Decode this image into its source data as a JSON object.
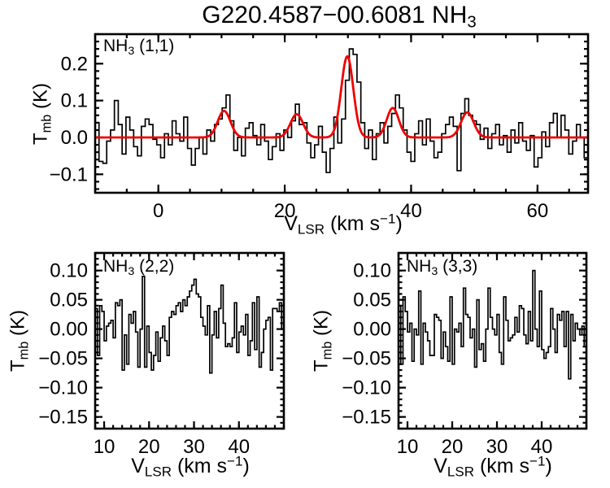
{
  "title": {
    "main": "G220.4587−00.6081 NH",
    "sub": "3"
  },
  "colors": {
    "spectrum": "#000000",
    "fit": "#ee0000",
    "background": "#ffffff"
  },
  "chart_data": [
    {
      "id": "nh3-11",
      "type": "line",
      "style": "histogram-step",
      "label": {
        "pre": "NH",
        "sub": "3",
        "post": " (1,1)"
      },
      "ylabel": {
        "pre": "T",
        "sub": "mb",
        "post": " (K)"
      },
      "xlabel": {
        "pre": "V",
        "sub": "LSR",
        "mid": " (km s",
        "sup": "−1",
        "end": ")"
      },
      "xlim": [
        -10,
        68
      ],
      "ylim": [
        -0.15,
        0.28
      ],
      "grid": false,
      "xticks": {
        "major": [
          0,
          20,
          40,
          60
        ],
        "labels": [
          "0",
          "20",
          "40",
          "60"
        ],
        "minor_step": 5
      },
      "yticks": {
        "major": [
          -0.1,
          0.0,
          0.1,
          0.2
        ],
        "labels": [
          "−0.1",
          "0.0",
          "0.1",
          "0.2"
        ],
        "minor_step": 0.02
      },
      "x0": -10,
      "dx": 0.609375,
      "values": [
        0.04,
        -0.065,
        -0.07,
        -0.01,
        0.02,
        0.1,
        0.035,
        -0.045,
        0.055,
        0.02,
        -0.025,
        -0.05,
        0.03,
        0.05,
        0.035,
        -0.005,
        -0.02,
        -0.055,
        0.01,
        -0.02,
        0.045,
        0.01,
        -0.01,
        0.055,
        -0.03,
        -0.075,
        -0.03,
        0.0,
        -0.045,
        0.02,
        -0.01,
        0.035,
        0.05,
        0.08,
        0.115,
        0.045,
        -0.035,
        0.0,
        -0.05,
        0.025,
        0.04,
        0.005,
        -0.02,
        0.035,
        -0.01,
        -0.06,
        -0.025,
        0.01,
        -0.035,
        0.02,
        0.0,
        0.045,
        0.09,
        0.035,
        0.04,
        -0.015,
        -0.055,
        -0.02,
        0.03,
        -0.04,
        -0.095,
        -0.03,
        0.055,
        -0.015,
        0.05,
        0.155,
        0.24,
        0.225,
        0.15,
        0.04,
        -0.03,
        0.02,
        -0.06,
        0.01,
        0.04,
        -0.015,
        0.03,
        0.065,
        0.115,
        0.08,
        0.02,
        -0.04,
        -0.065,
        0.01,
        0.045,
        -0.02,
        0.05,
        -0.01,
        -0.055,
        -0.04,
        0.01,
        0.035,
        0.055,
        0.03,
        -0.09,
        0.065,
        0.105,
        0.06,
        0.045,
        0.035,
        -0.005,
        0.025,
        -0.03,
        0.01,
        0.035,
        -0.02,
        0.005,
        -0.04,
        0.02,
        -0.015,
        0.04,
        -0.01,
        -0.035,
        0.005,
        -0.08,
        -0.055,
        0.015,
        -0.025,
        0.04,
        0.065,
        0.0,
        0.06,
        0.02,
        -0.045,
        -0.01,
        0.035,
        0.0,
        -0.055
      ],
      "fit": {
        "model": "sum-of-gaussians",
        "baseline": 0.0,
        "components": [
          {
            "center": 10.4,
            "amp": 0.072,
            "sigma": 1.0
          },
          {
            "center": 21.9,
            "amp": 0.063,
            "sigma": 1.0
          },
          {
            "center": 29.9,
            "amp": 0.22,
            "sigma": 0.95
          },
          {
            "center": 37.1,
            "amp": 0.08,
            "sigma": 0.95
          },
          {
            "center": 48.9,
            "amp": 0.068,
            "sigma": 1.0
          }
        ]
      }
    },
    {
      "id": "nh3-22",
      "type": "line",
      "style": "histogram-step",
      "label": {
        "pre": "NH",
        "sub": "3",
        "post": " (2,2)"
      },
      "ylabel": {
        "pre": "T",
        "sub": "mb",
        "post": " (K)"
      },
      "xlabel": {
        "pre": "V",
        "sub": "LSR",
        "mid": " (km s",
        "sup": "−1",
        "end": ")"
      },
      "xlim": [
        8,
        50
      ],
      "ylim": [
        -0.17,
        0.13
      ],
      "grid": false,
      "xticks": {
        "major": [
          10,
          20,
          30,
          40
        ],
        "labels": [
          "10",
          "20",
          "30",
          "40"
        ],
        "minor_step": 2
      },
      "yticks": {
        "major": [
          0.1,
          0.05,
          0.0,
          -0.05,
          -0.1,
          -0.15
        ],
        "labels": [
          "0.10",
          "0.05",
          "0.00",
          "−0.05",
          "−0.10",
          "−0.15"
        ],
        "minor_step": 0.01
      },
      "x0": 8,
      "dx": 0.5,
      "values": [
        0.035,
        -0.045,
        0.04,
        0.03,
        -0.02,
        0.005,
        0.01,
        0.015,
        -0.015,
        0.045,
        0.04,
        0.05,
        -0.07,
        -0.01,
        -0.06,
        0.025,
        0.01,
        0.03,
        -0.005,
        -0.065,
        0.0,
        0.09,
        -0.065,
        0.005,
        -0.04,
        -0.07,
        -0.045,
        -0.005,
        -0.055,
        -0.015,
        0.005,
        -0.02,
        -0.045,
        0.02,
        0.03,
        0.025,
        0.04,
        0.045,
        0.03,
        0.05,
        0.04,
        0.055,
        0.065,
        0.075,
        0.085,
        0.06,
        0.055,
        0.02,
        0.005,
        -0.01,
        0.04,
        -0.075,
        -0.01,
        0.03,
        -0.015,
        0.035,
        0.075,
        0.01,
        -0.03,
        -0.025,
        -0.03,
        -0.015,
        0.045,
        -0.04,
        -0.005,
        0.005,
        -0.01,
        0.025,
        -0.045,
        -0.02,
        0.045,
        -0.035,
        0.055,
        -0.065,
        -0.04,
        0.0,
        0.015,
        0.02,
        -0.07,
        0.035,
        0.035,
        0.03,
        0.045,
        0.0
      ]
    },
    {
      "id": "nh3-33",
      "type": "line",
      "style": "histogram-step",
      "label": {
        "pre": "NH",
        "sub": "3",
        "post": " (3,3)"
      },
      "ylabel": {
        "pre": "T",
        "sub": "mb",
        "post": " (K)"
      },
      "xlabel": {
        "pre": "V",
        "sub": "LSR",
        "mid": " (km s",
        "sup": "−1",
        "end": ")"
      },
      "xlim": [
        8,
        50
      ],
      "ylim": [
        -0.17,
        0.13
      ],
      "grid": false,
      "xticks": {
        "major": [
          10,
          20,
          30,
          40
        ],
        "labels": [
          "10",
          "20",
          "30",
          "40"
        ],
        "minor_step": 2
      },
      "yticks": {
        "major": [
          0.1,
          0.05,
          0.0,
          -0.05,
          -0.1,
          -0.15
        ],
        "labels": [
          "0.10",
          "0.05",
          "0.00",
          "−0.05",
          "−0.10",
          "−0.15"
        ],
        "minor_step": 0.01
      },
      "x0": 8,
      "dx": 0.5,
      "values": [
        0.04,
        -0.06,
        0.055,
        0.03,
        -0.005,
        0.01,
        -0.055,
        0.0,
        -0.01,
        0.065,
        -0.06,
        0.01,
        -0.005,
        -0.02,
        -0.045,
        -0.045,
        0.025,
        0.02,
        0.015,
        -0.05,
        -0.005,
        -0.03,
        -0.055,
        0.055,
        -0.06,
        0.0,
        -0.005,
        0.01,
        -0.03,
        0.07,
        0.025,
        0.02,
        -0.015,
        0.0,
        -0.065,
        0.05,
        -0.035,
        -0.025,
        -0.055,
        0.0,
        0.07,
        0.02,
        0.0,
        -0.01,
        0.025,
        -0.04,
        -0.06,
        0.055,
        0.015,
        -0.02,
        -0.015,
        -0.01,
        0.02,
        -0.005,
        0.04,
        0.035,
        -0.01,
        -0.025,
        0.03,
        -0.02,
        0.1,
        0.0,
        -0.03,
        0.065,
        -0.035,
        -0.05,
        -0.04,
        -0.03,
        0.035,
        0.0,
        -0.04,
        0.025,
        0.015,
        0.03,
        -0.03,
        0.03,
        -0.085,
        0.025,
        -0.02,
        0.01,
        0.0,
        -0.01,
        0.005,
        -0.03
      ]
    }
  ]
}
